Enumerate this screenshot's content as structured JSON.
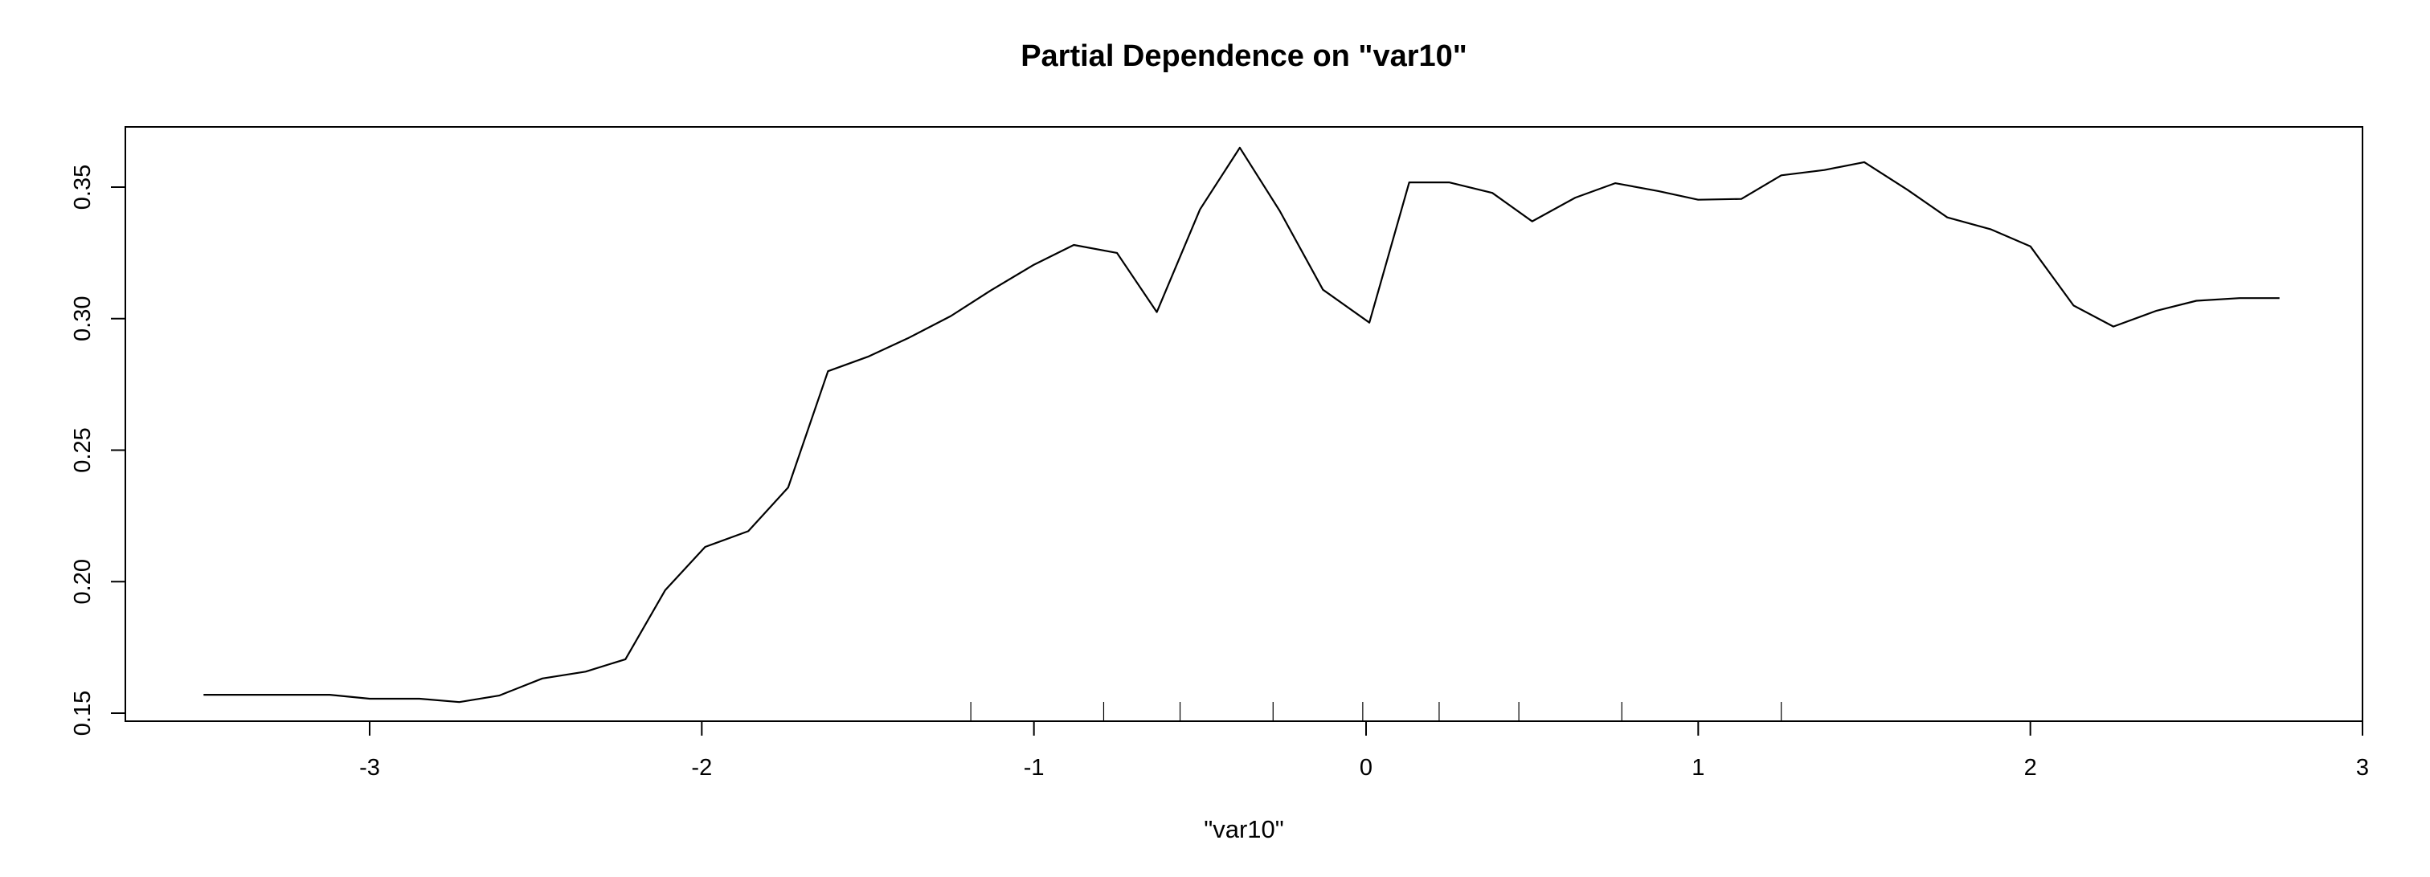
{
  "chart_data": {
    "type": "line",
    "title": "Partial Dependence on \"var10\"",
    "xlabel": "\"var10\"",
    "ylabel": "",
    "xlim": [
      -3.5,
      3.0
    ],
    "ylim": [
      0.15,
      0.365
    ],
    "grid": false,
    "legend": "none",
    "x_ticks": [
      -3,
      -2,
      -1,
      0,
      1,
      2,
      3
    ],
    "x_tick_labels": [
      "-3",
      "-2",
      "-1",
      "0",
      "1",
      "2",
      "3"
    ],
    "y_ticks": [
      0.15,
      0.2,
      0.25,
      0.3,
      0.35
    ],
    "y_tick_labels": [
      "0.15",
      "0.20",
      "0.25",
      "0.30",
      "0.35"
    ],
    "series": [
      {
        "x": [
          -3.5,
          -3.25,
          -3.12,
          -3.0,
          -2.85,
          -2.73,
          -2.61,
          -2.48,
          -2.35,
          -2.23,
          -2.11,
          -1.99,
          -1.86,
          -1.74,
          -1.62,
          -1.5,
          -1.38,
          -1.25,
          -1.13,
          -1.0,
          -0.88,
          -0.75,
          -0.63,
          -0.5,
          -0.38,
          -0.26,
          -0.13,
          0.01,
          0.13,
          0.25,
          0.38,
          0.5,
          0.63,
          0.75,
          0.88,
          1.0,
          1.13,
          1.25,
          1.38,
          1.5,
          1.63,
          1.75,
          1.88,
          2.0,
          2.13,
          2.25,
          2.38,
          2.5,
          2.63,
          2.75
        ],
        "y": [
          0.157,
          0.157,
          0.157,
          0.1555,
          0.1555,
          0.1542,
          0.1567,
          0.1632,
          0.1658,
          0.1705,
          0.1968,
          0.2132,
          0.2192,
          0.2358,
          0.28,
          0.2855,
          0.2925,
          0.301,
          0.3107,
          0.3205,
          0.328,
          0.325,
          0.3025,
          0.3415,
          0.365,
          0.341,
          0.311,
          0.2985,
          0.3518,
          0.3518,
          0.3478,
          0.337,
          0.346,
          0.3515,
          0.3485,
          0.3452,
          0.3455,
          0.3545,
          0.3565,
          0.3595,
          0.349,
          0.3385,
          0.334,
          0.3275,
          0.305,
          0.297,
          0.303,
          0.3068,
          0.3078,
          0.3078
        ]
      }
    ],
    "rug": [
      -1.19,
      -0.79,
      -0.56,
      -0.28,
      -0.01,
      0.22,
      0.46,
      0.77,
      1.25
    ]
  }
}
